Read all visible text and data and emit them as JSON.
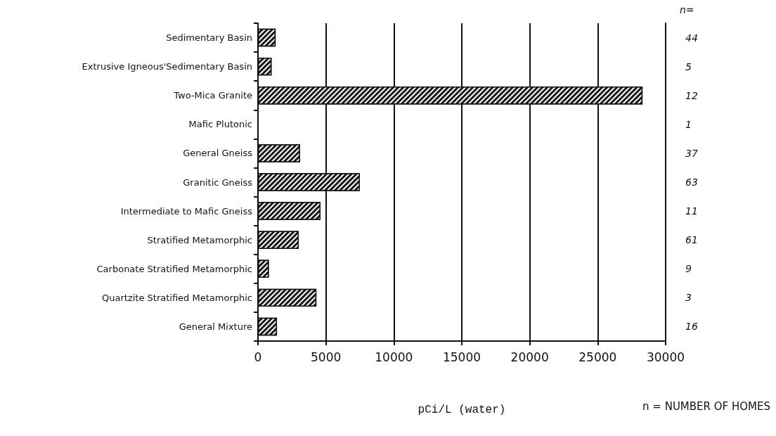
{
  "chart_data": {
    "type": "bar",
    "orientation": "horizontal",
    "categories": [
      "Sedimentary Basin",
      "Extrusive Igneous'Sedimentary Basin",
      "Two-Mica Granite",
      "Mafic Plutonic",
      "General Gneiss",
      "Granitic Gneiss",
      "Intermediate to Mafic Gneiss",
      "Stratified Metamorphic",
      "Carbonate Stratified Metamorphic",
      "Quartzite Stratified Metamorphic",
      "General Mixture"
    ],
    "values": [
      1300,
      1000,
      28300,
      0,
      3100,
      7500,
      4600,
      3000,
      800,
      4300,
      1400
    ],
    "color": "#1a1a1a",
    "y2_categories": [
      "44",
      "5",
      "12",
      "1",
      "37",
      "63",
      "11",
      "61",
      "9",
      "3",
      "16"
    ],
    "y2label": "n=",
    "xlabel": "pCi/L (water)",
    "xlim": [
      0,
      30000
    ],
    "xticks": [
      0,
      5000,
      10000,
      15000,
      20000,
      25000,
      30000
    ],
    "grid": "x",
    "annotations": [
      "n = NUMBER OF HOMES"
    ]
  }
}
